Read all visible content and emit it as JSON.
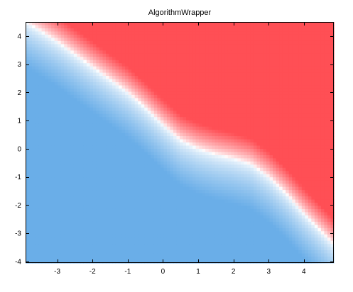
{
  "chart_data": {
    "type": "heatmap",
    "title": "AlgorithmWrapper",
    "xlabel": "",
    "ylabel": "",
    "xlim": [
      -3.9,
      4.85
    ],
    "ylim": [
      -4.05,
      4.5
    ],
    "x_ticks": [
      -3,
      -2,
      -1,
      0,
      1,
      2,
      3,
      4
    ],
    "y_ticks": [
      4,
      3,
      2,
      1,
      0,
      -1,
      -2,
      -3,
      -4
    ],
    "colormap": {
      "negative": "#6aaee8",
      "neutral": "#ffffff",
      "positive": "#ff4f55"
    },
    "decision_boundary": {
      "x": [
        -3.9,
        -3.5,
        -3.0,
        -2.5,
        -2.0,
        -1.5,
        -1.0,
        -0.5,
        0.0,
        0.5,
        1.0,
        1.5,
        2.0,
        2.5,
        3.0,
        3.5,
        4.0,
        4.5,
        4.85
      ],
      "y": [
        4.5,
        4.2,
        3.8,
        3.35,
        2.9,
        2.45,
        2.0,
        1.45,
        0.85,
        0.3,
        0.0,
        -0.2,
        -0.35,
        -0.55,
        -1.0,
        -1.6,
        -2.3,
        -2.95,
        -3.4
      ]
    },
    "grid": false,
    "legend": "none"
  }
}
